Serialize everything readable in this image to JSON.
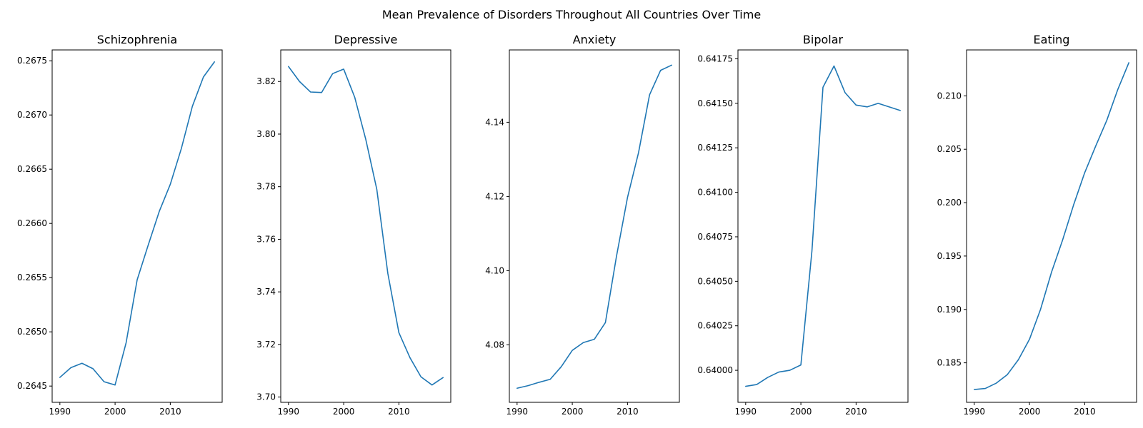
{
  "suptitle": "Mean Prevalence of Disorders Throughout All Countries Over Time",
  "colors": {
    "line": "#1f77b4",
    "frame": "#000000",
    "background": "#ffffff"
  },
  "chart_data": [
    {
      "type": "line",
      "title": "Schizophrenia",
      "xlabel": "",
      "ylabel": "",
      "grid": false,
      "xlim": [
        1988.6,
        2019.4
      ],
      "ylim": [
        0.26435,
        0.2676
      ],
      "xticks": [
        1990,
        2000,
        2010
      ],
      "xtick_labels": [
        "1990",
        "2000",
        "2010"
      ],
      "yticks": [
        0.2645,
        0.265,
        0.2655,
        0.266,
        0.2665,
        0.267,
        0.2675
      ],
      "ytick_labels": [
        "0.2645",
        "0.2650",
        "0.2655",
        "0.2660",
        "0.2665",
        "0.2670",
        "0.2675"
      ],
      "x": [
        1990,
        1992,
        1994,
        1996,
        1998,
        2000,
        2002,
        2004,
        2006,
        2008,
        2010,
        2012,
        2014,
        2016,
        2018
      ],
      "y": [
        0.26458,
        0.26467,
        0.26471,
        0.26466,
        0.26454,
        0.26451,
        0.2649,
        0.26548,
        0.2658,
        0.26611,
        0.26636,
        0.26669,
        0.26708,
        0.26735,
        0.26749
      ]
    },
    {
      "type": "line",
      "title": "Depressive",
      "xlabel": "",
      "ylabel": "",
      "grid": false,
      "xlim": [
        1988.6,
        2019.4
      ],
      "ylim": [
        3.698,
        3.832
      ],
      "xticks": [
        1990,
        2000,
        2010
      ],
      "xtick_labels": [
        "1990",
        "2000",
        "2010"
      ],
      "yticks": [
        3.7,
        3.72,
        3.74,
        3.76,
        3.78,
        3.8,
        3.82
      ],
      "ytick_labels": [
        "3.70",
        "3.72",
        "3.74",
        "3.76",
        "3.78",
        "3.80",
        "3.82"
      ],
      "x": [
        1990,
        1992,
        1994,
        1996,
        1998,
        2000,
        2002,
        2004,
        2006,
        2008,
        2010,
        2012,
        2014,
        2016,
        2018
      ],
      "y": [
        3.8257,
        3.82,
        3.816,
        3.8158,
        3.823,
        3.8247,
        3.814,
        3.798,
        3.779,
        3.747,
        3.7245,
        3.715,
        3.7077,
        3.7046,
        3.7074
      ]
    },
    {
      "type": "line",
      "title": "Anxiety",
      "xlabel": "",
      "ylabel": "",
      "grid": false,
      "xlim": [
        1988.6,
        2019.4
      ],
      "ylim": [
        4.0645,
        4.1595
      ],
      "xticks": [
        1990,
        2000,
        2010
      ],
      "xtick_labels": [
        "1990",
        "2000",
        "2010"
      ],
      "yticks": [
        4.08,
        4.1,
        4.12,
        4.14
      ],
      "ytick_labels": [
        "4.08",
        "4.10",
        "4.12",
        "4.14"
      ],
      "x": [
        1990,
        1992,
        1994,
        1996,
        1998,
        2000,
        2002,
        2004,
        2006,
        2008,
        2010,
        2012,
        2014,
        2016,
        2018
      ],
      "y": [
        4.0683,
        4.069,
        4.0699,
        4.0707,
        4.0741,
        4.0785,
        4.0806,
        4.0815,
        4.086,
        4.1038,
        4.1197,
        4.1318,
        4.1474,
        4.154,
        4.1554
      ]
    },
    {
      "type": "line",
      "title": "Bipolar",
      "xlabel": "",
      "ylabel": "",
      "grid": false,
      "xlim": [
        1988.6,
        2019.4
      ],
      "ylim": [
        0.63982,
        0.6418
      ],
      "xticks": [
        1990,
        2000,
        2010
      ],
      "xtick_labels": [
        "1990",
        "2000",
        "2010"
      ],
      "yticks": [
        0.64,
        0.64025,
        0.6405,
        0.64075,
        0.641,
        0.64125,
        0.6415,
        0.64175
      ],
      "ytick_labels": [
        "0.64000",
        "0.64025",
        "0.64050",
        "0.64075",
        "0.64100",
        "0.64125",
        "0.64150",
        "0.64175"
      ],
      "x": [
        1990,
        1992,
        1994,
        1996,
        1998,
        2000,
        2002,
        2004,
        2006,
        2008,
        2010,
        2012,
        2014,
        2016,
        2018
      ],
      "y": [
        0.63991,
        0.63992,
        0.63996,
        0.63999,
        0.64,
        0.64003,
        0.64067,
        0.64159,
        0.64171,
        0.64156,
        0.64149,
        0.64148,
        0.6415,
        0.64148,
        0.64146
      ]
    },
    {
      "type": "line",
      "title": "Eating",
      "xlabel": "",
      "ylabel": "",
      "grid": false,
      "xlim": [
        1988.6,
        2019.4
      ],
      "ylim": [
        0.1813,
        0.2143
      ],
      "xticks": [
        1990,
        2000,
        2010
      ],
      "xtick_labels": [
        "1990",
        "2000",
        "2010"
      ],
      "yticks": [
        0.185,
        0.19,
        0.195,
        0.2,
        0.205,
        0.21
      ],
      "ytick_labels": [
        "0.185",
        "0.190",
        "0.195",
        "0.200",
        "0.205",
        "0.210"
      ],
      "x": [
        1990,
        1992,
        1994,
        1996,
        1998,
        2000,
        2002,
        2004,
        2006,
        2008,
        2010,
        2012,
        2014,
        2016,
        2018
      ],
      "y": [
        0.1825,
        0.1826,
        0.1831,
        0.1839,
        0.1853,
        0.1872,
        0.19,
        0.1935,
        0.1965,
        0.1998,
        0.2028,
        0.2053,
        0.2077,
        0.2106,
        0.2131
      ]
    }
  ]
}
